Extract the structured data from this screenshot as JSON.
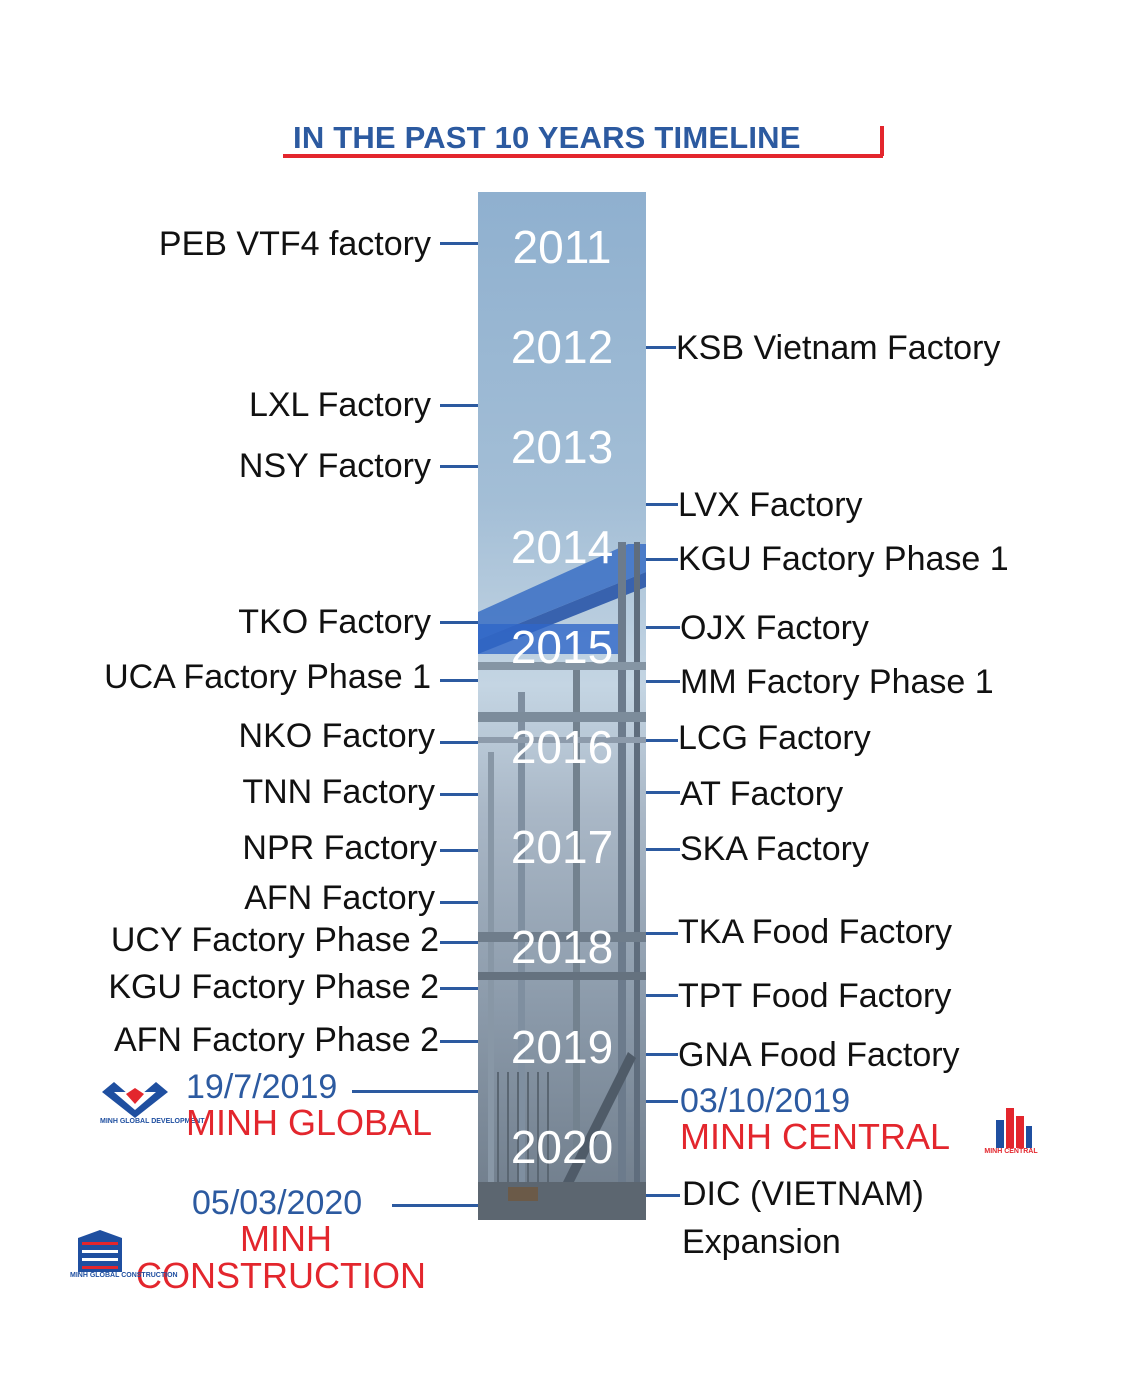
{
  "title": "IN THE PAST 10 YEARS TIMELINE",
  "years": [
    "2011",
    "2012",
    "2013",
    "2014",
    "2015",
    "2016",
    "2017",
    "2018",
    "2019",
    "2020"
  ],
  "left_items": [
    "PEB VTF4 factory",
    "LXL Factory",
    "NSY Factory",
    "TKO Factory",
    "UCA Factory Phase 1",
    "NKO Factory",
    "TNN Factory",
    "NPR Factory",
    "AFN Factory",
    "UCY Factory Phase 2",
    "KGU Factory Phase 2",
    "AFN Factory Phase 2"
  ],
  "right_items": [
    "KSB Vietnam Factory",
    "LVX Factory",
    "KGU Factory Phase 1",
    "OJX Factory",
    "MM Factory Phase 1",
    "LCG Factory",
    "AT Factory",
    "SKA Factory",
    "TKA Food Factory",
    "TPT Food Factory",
    "GNA Food Factory"
  ],
  "events": {
    "global": {
      "date": "19/7/2019",
      "name": "MINH GLOBAL",
      "logo_text": "MINH GLOBAL DEVELOPMENT"
    },
    "central": {
      "date": "03/10/2019",
      "name": "MINH CENTRAL",
      "logo_text": "MINH CENTRAL"
    },
    "construction": {
      "date": "05/03/2020",
      "name_line1": "MINH",
      "name_line2": "CONSTRUCTION",
      "logo_text": "MINH GLOBAL CONSTRUCTION"
    }
  },
  "dic": {
    "line1": "DIC (VIETNAM)",
    "line2": "Expansion"
  },
  "colors": {
    "blue": "#2c5aa0",
    "red": "#e3262d",
    "bar_top": "#8fb0cf",
    "bar_bottom": "#6e7b89"
  }
}
